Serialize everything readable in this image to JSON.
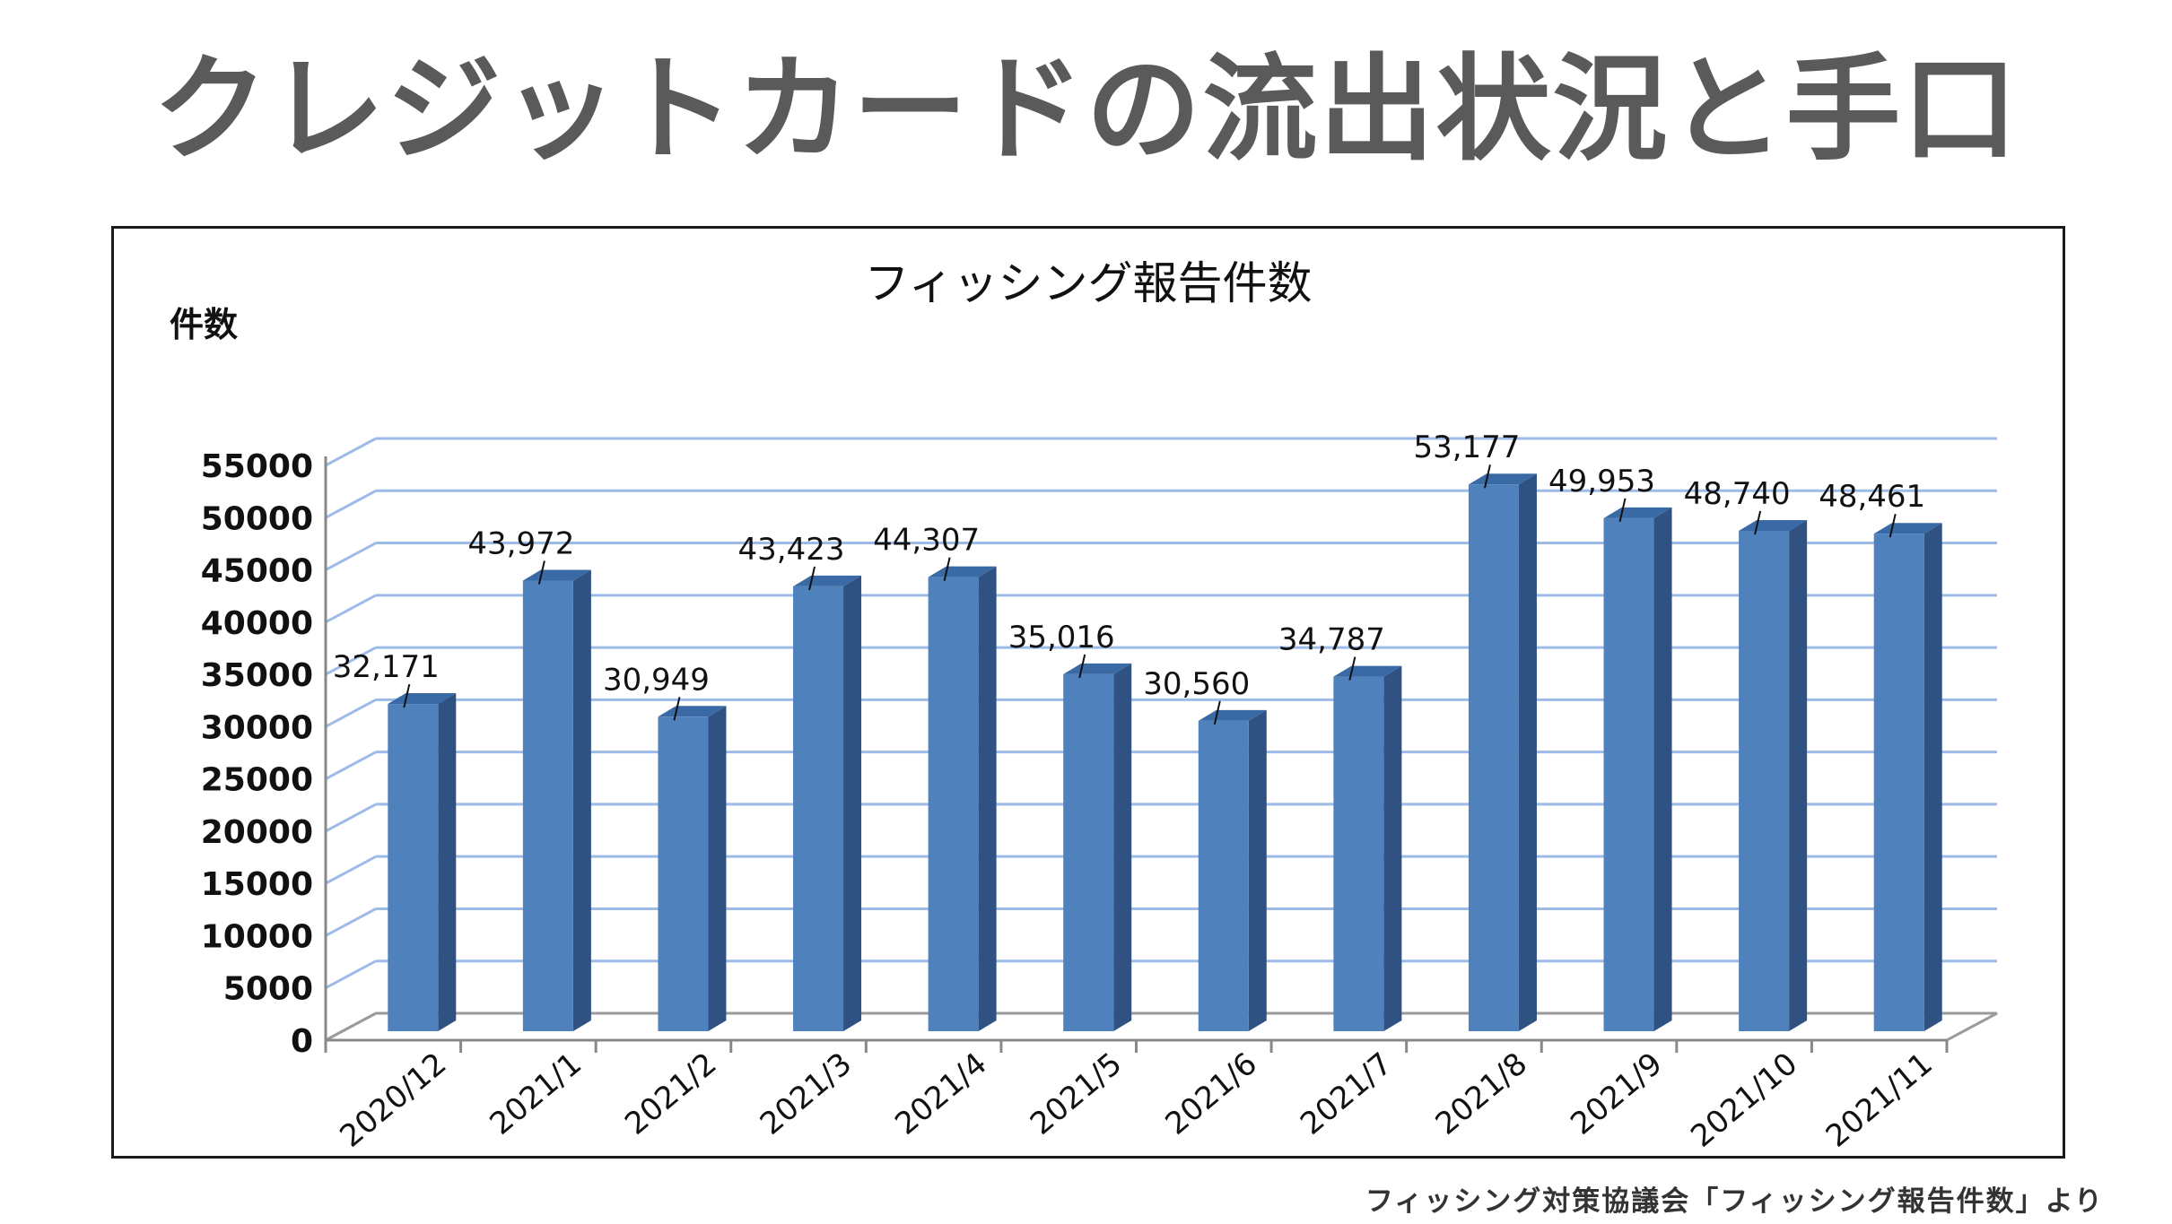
{
  "slide": {
    "title": "クレジットカードの流出状況と手口",
    "source": "フィッシング対策協議会「フィッシング報告件数」より"
  },
  "colors": {
    "bar_front": "#4f81bd",
    "bar_side": "#2f5282",
    "bar_top": "#3a6aa6",
    "grid": "#9cbbe8",
    "title_text": "#5a5a5a"
  },
  "chart_data": {
    "type": "bar",
    "title": "フィッシング報告件数",
    "ylabel": "件数",
    "xlabel": "",
    "categories": [
      "2020/12",
      "2021/1",
      "2021/2",
      "2021/3",
      "2021/4",
      "2021/5",
      "2021/6",
      "2021/7",
      "2021/8",
      "2021/9",
      "2021/10",
      "2021/11"
    ],
    "values": [
      32171,
      43972,
      30949,
      43423,
      44307,
      35016,
      30560,
      34787,
      53177,
      49953,
      48740,
      48461
    ],
    "value_labels": [
      "32,171",
      "43,972",
      "30,949",
      "43,423",
      "44,307",
      "35,016",
      "30,560",
      "34,787",
      "53,177",
      "49,953",
      "48,740",
      "48,461"
    ],
    "yticks": [
      0,
      5000,
      10000,
      15000,
      20000,
      25000,
      30000,
      35000,
      40000,
      45000,
      50000,
      55000
    ],
    "ylim": [
      0,
      55000
    ],
    "grid": true,
    "legend": "none",
    "style": "3d-column"
  }
}
